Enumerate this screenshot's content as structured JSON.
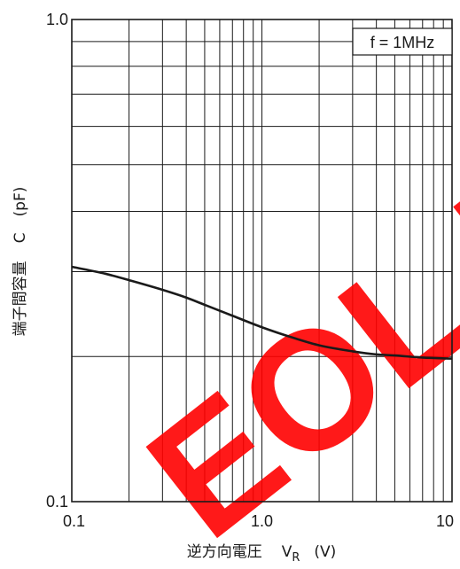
{
  "chart_data": {
    "type": "line",
    "xlabel": "逆方向電圧",
    "xlabel_symbol": "V",
    "xlabel_subscript": "R",
    "xlabel_unit": "(V)",
    "ylabel": "端子間容量",
    "ylabel_symbol": "C",
    "ylabel_unit": "(pF)",
    "x_scale": "log",
    "y_scale": "log",
    "xlim": [
      0.1,
      10
    ],
    "ylim": [
      0.1,
      1.0
    ],
    "x_tick_labels": [
      {
        "value": 0.1,
        "label": "0.1"
      },
      {
        "value": 1.0,
        "label": "1.0"
      },
      {
        "value": 10,
        "label": "10"
      }
    ],
    "y_tick_labels": [
      {
        "value": 0.1,
        "label": "0.1"
      },
      {
        "value": 1.0,
        "label": "1.0"
      }
    ],
    "grid": true,
    "annotation": "f = 1MHz",
    "watermark": "EOL P",
    "watermark_color": "#ff0000",
    "line_color": "#1a1a1a",
    "series": [
      {
        "x": [
          0.1,
          0.15,
          0.2,
          0.3,
          0.4,
          0.5,
          0.7,
          1.0,
          1.5,
          2.0,
          3.0,
          4.0,
          5.0,
          7.0,
          10
        ],
        "y": [
          0.307,
          0.297,
          0.288,
          0.275,
          0.265,
          0.256,
          0.243,
          0.23,
          0.218,
          0.211,
          0.205,
          0.202,
          0.201,
          0.199,
          0.198
        ]
      }
    ]
  }
}
